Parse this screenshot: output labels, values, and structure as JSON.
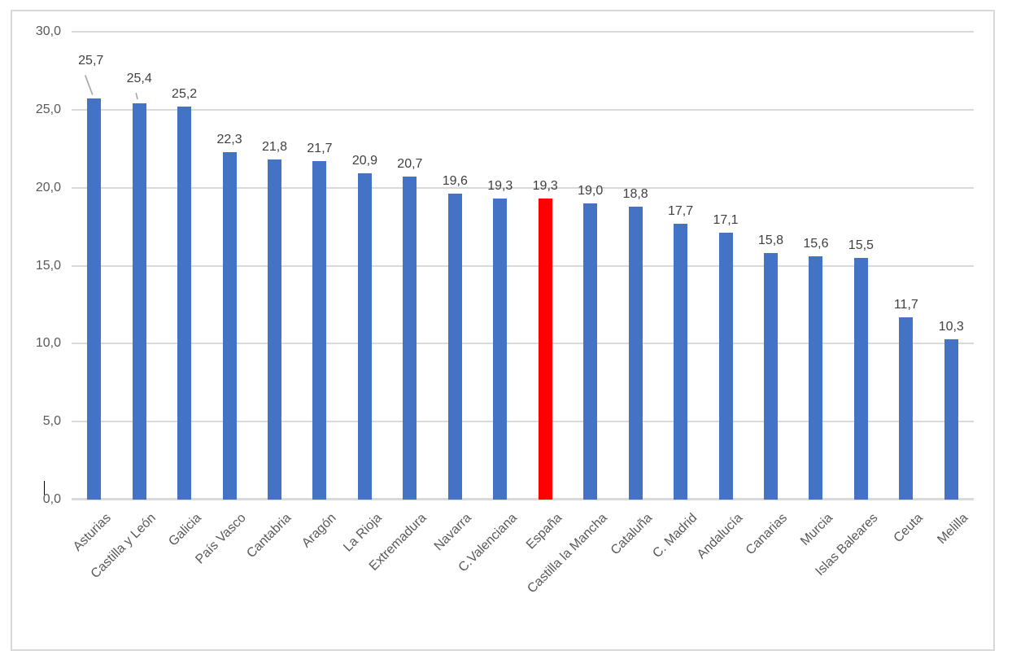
{
  "chart_data": {
    "type": "bar",
    "title": "",
    "xlabel": "",
    "ylabel": "",
    "categories": [
      "Asturias",
      "Castilla y León",
      "Galicia",
      "País Vasco",
      "Cantabria",
      "Aragón",
      "La Rioja",
      "Extremadura",
      "Navarra",
      "C.Valenciana",
      "España",
      "Castilla la Mancha",
      "Cataluña",
      "C. Madrid",
      "Andalucía",
      "Canarias",
      "Murcia",
      "Islas Baleares",
      "Ceuta",
      "Melilla"
    ],
    "values": [
      25.7,
      25.4,
      25.2,
      22.3,
      21.8,
      21.7,
      20.9,
      20.7,
      19.6,
      19.3,
      19.3,
      19.0,
      18.8,
      17.7,
      17.1,
      15.8,
      15.6,
      15.5,
      11.7,
      10.3
    ],
    "value_labels": [
      "25,7",
      "25,4",
      "25,2",
      "22,3",
      "21,8",
      "21,7",
      "20,9",
      "20,7",
      "19,6",
      "19,3",
      "19,3",
      "19,0",
      "18,8",
      "17,7",
      "17,1",
      "15,8",
      "15,6",
      "15,5",
      "11,7",
      "10,3"
    ],
    "ylim": [
      0,
      30
    ],
    "yticks": [
      0,
      5,
      10,
      15,
      20,
      25,
      30
    ],
    "ytick_labels": [
      "0,0",
      "5,0",
      "10,0",
      "15,0",
      "20,0",
      "25,0",
      "30,0"
    ],
    "grid": true,
    "legend": "none",
    "bar_color": "#4472C4",
    "highlight": {
      "category": "España",
      "index": 10,
      "color": "#FF0000"
    },
    "label_color": "#404040",
    "axis_text_color": "#595959",
    "gridline_color": "#D9D9D9",
    "leader_line_color": "#A6A6A6",
    "labels_with_leader_lines": [
      0,
      1
    ]
  }
}
